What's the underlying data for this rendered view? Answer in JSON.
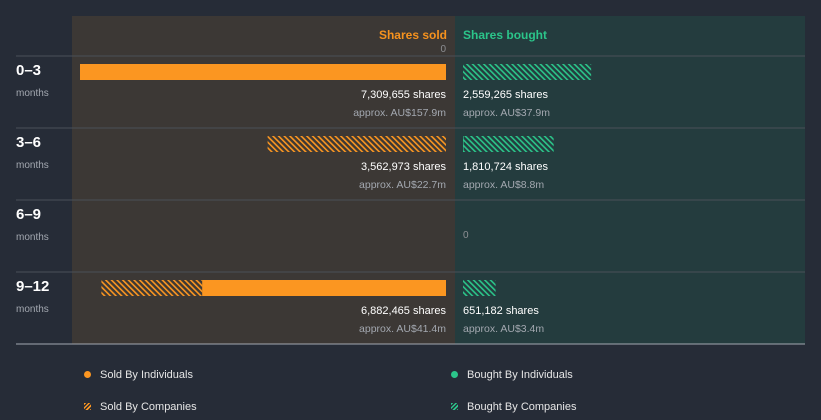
{
  "chart_data": {
    "type": "bar",
    "orientation": "horizontal-diverging",
    "columns": {
      "sold": "Shares sold",
      "bought": "Shares bought"
    },
    "categories": [
      {
        "label": "0–3",
        "unit": "months"
      },
      {
        "label": "3–6",
        "unit": "months"
      },
      {
        "label": "6–9",
        "unit": "months"
      },
      {
        "label": "9–12",
        "unit": "months"
      }
    ],
    "series": [
      {
        "name": "Sold By Individuals",
        "side": "sold",
        "pattern": "solid",
        "values": [
          7309655,
          0,
          0,
          4871000
        ]
      },
      {
        "name": "Sold By Companies",
        "side": "sold",
        "pattern": "hatched",
        "values": [
          0,
          3562973,
          0,
          2011465
        ]
      },
      {
        "name": "Bought By Individuals",
        "side": "bought",
        "pattern": "solid",
        "values": [
          0,
          12000,
          0,
          0
        ]
      },
      {
        "name": "Bought By Companies",
        "side": "bought",
        "pattern": "hatched",
        "values": [
          2559265,
          1798724,
          0,
          651182
        ]
      }
    ],
    "labels": {
      "sold": [
        {
          "shares": "7,309,655 shares",
          "approx": "approx. AU$157.9m"
        },
        {
          "shares": "3,562,973 shares",
          "approx": "approx. AU$22.7m"
        },
        {
          "zero": "0"
        },
        {
          "shares": "6,882,465 shares",
          "approx": "approx. AU$41.4m"
        }
      ],
      "bought": [
        {
          "shares": "2,559,265 shares",
          "approx": "approx. AU$37.9m"
        },
        {
          "shares": "1,810,724 shares",
          "approx": "approx. AU$8.8m"
        },
        {
          "zero": "0"
        },
        {
          "shares": "651,182 shares",
          "approx": "approx. AU$3.4m"
        }
      ]
    },
    "scale_max": 7309655,
    "colors": {
      "background": "#262c37",
      "sold_panel": "#3c3835",
      "bought_panel": "#243c3e",
      "sold": "#fb9621",
      "bought": "#2bc58a",
      "sold_header": "#f6921e",
      "bought_header": "#2bc58a",
      "text": "#ffffff",
      "muted": "#a3a8b0"
    }
  }
}
